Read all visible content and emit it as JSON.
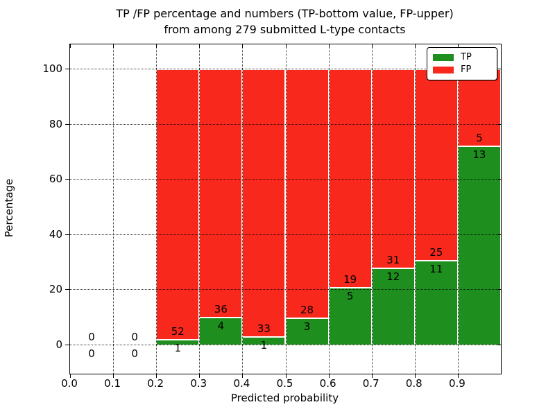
{
  "title": {
    "line1": "TP /FP percentage and numbers (TP-bottom value, FP-upper)",
    "line2": "from among 279 submitted L-type contacts"
  },
  "axes": {
    "xlabel": "Predicted probability",
    "ylabel": "Percentage",
    "xtick_labels": [
      "0.0",
      "0.1",
      "0.2",
      "0.3",
      "0.4",
      "0.5",
      "0.6",
      "0.7",
      "0.8",
      "0.9"
    ],
    "ytick_labels": [
      "0",
      "20",
      "40",
      "60",
      "80",
      "100"
    ]
  },
  "legend": {
    "tp_label": "TP",
    "fp_label": "FP"
  },
  "chart_data": {
    "type": "bar",
    "stacked": true,
    "title": "TP /FP percentage and numbers (TP-bottom value, FP-upper)\nfrom among 279 submitted L-type contacts",
    "xlabel": "Predicted probability",
    "ylabel": "Percentage",
    "xlim": [
      0.0,
      1.0
    ],
    "ylim": [
      -10,
      110
    ],
    "xticks": [
      0.0,
      0.1,
      0.2,
      0.3,
      0.4,
      0.5,
      0.6,
      0.7,
      0.8,
      0.9
    ],
    "yticks": [
      0,
      20,
      40,
      60,
      80,
      100
    ],
    "grid": true,
    "legend_position": "upper right",
    "total_contacts": 279,
    "series_names": [
      "TP",
      "FP"
    ],
    "colors": {
      "tp": "#1e8e1e",
      "fp": "#f9281c"
    },
    "bins": [
      {
        "range": [
          0.0,
          0.1
        ],
        "tp": 0,
        "fp": 0,
        "tp_pct": 0,
        "fp_pct": 0
      },
      {
        "range": [
          0.1,
          0.2
        ],
        "tp": 0,
        "fp": 0,
        "tp_pct": 0,
        "fp_pct": 0
      },
      {
        "range": [
          0.2,
          0.3
        ],
        "tp": 1,
        "fp": 52,
        "tp_pct": 1.89,
        "fp_pct": 98.11
      },
      {
        "range": [
          0.3,
          0.4
        ],
        "tp": 4,
        "fp": 36,
        "tp_pct": 10.0,
        "fp_pct": 90.0
      },
      {
        "range": [
          0.4,
          0.5
        ],
        "tp": 1,
        "fp": 33,
        "tp_pct": 2.94,
        "fp_pct": 97.06
      },
      {
        "range": [
          0.5,
          0.6
        ],
        "tp": 3,
        "fp": 28,
        "tp_pct": 9.68,
        "fp_pct": 90.32
      },
      {
        "range": [
          0.6,
          0.7
        ],
        "tp": 5,
        "fp": 19,
        "tp_pct": 20.83,
        "fp_pct": 79.17
      },
      {
        "range": [
          0.7,
          0.8
        ],
        "tp": 12,
        "fp": 31,
        "tp_pct": 27.91,
        "fp_pct": 72.09
      },
      {
        "range": [
          0.8,
          0.9
        ],
        "tp": 11,
        "fp": 25,
        "tp_pct": 30.56,
        "fp_pct": 69.44
      },
      {
        "range": [
          0.9,
          1.0
        ],
        "tp": 13,
        "fp": 5,
        "tp_pct": 72.22,
        "fp_pct": 27.78
      }
    ]
  }
}
